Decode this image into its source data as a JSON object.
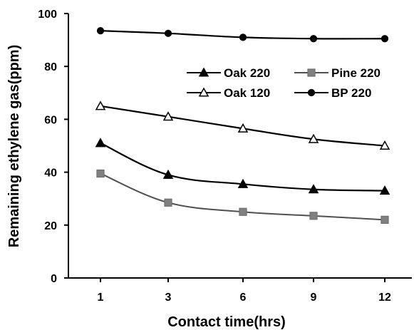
{
  "chart_data": {
    "type": "line",
    "title": "",
    "xlabel": "Contact time(hrs)",
    "ylabel": "Remaining ethylene gas(ppm)",
    "categories": [
      "1",
      "3",
      "6",
      "9",
      "12"
    ],
    "ylim": [
      0,
      100
    ],
    "yticks": [
      0,
      20,
      40,
      60,
      80,
      100
    ],
    "grid": false,
    "legend_position": "top-right",
    "series": [
      {
        "name": "Oak 220",
        "marker": "filled-triangle",
        "color": "#000000",
        "values": [
          51,
          39,
          35.5,
          33.5,
          33
        ]
      },
      {
        "name": "Pine 220",
        "marker": "filled-square",
        "color": "#808080",
        "values": [
          39.5,
          28.5,
          25,
          23.5,
          22
        ]
      },
      {
        "name": "Oak 120",
        "marker": "open-triangle",
        "color": "#000000",
        "values": [
          65,
          61,
          56.5,
          52.5,
          50
        ]
      },
      {
        "name": "BP 220",
        "marker": "filled-circle",
        "color": "#000000",
        "values": [
          93.5,
          92.5,
          91,
          90.5,
          90.5
        ]
      }
    ]
  }
}
